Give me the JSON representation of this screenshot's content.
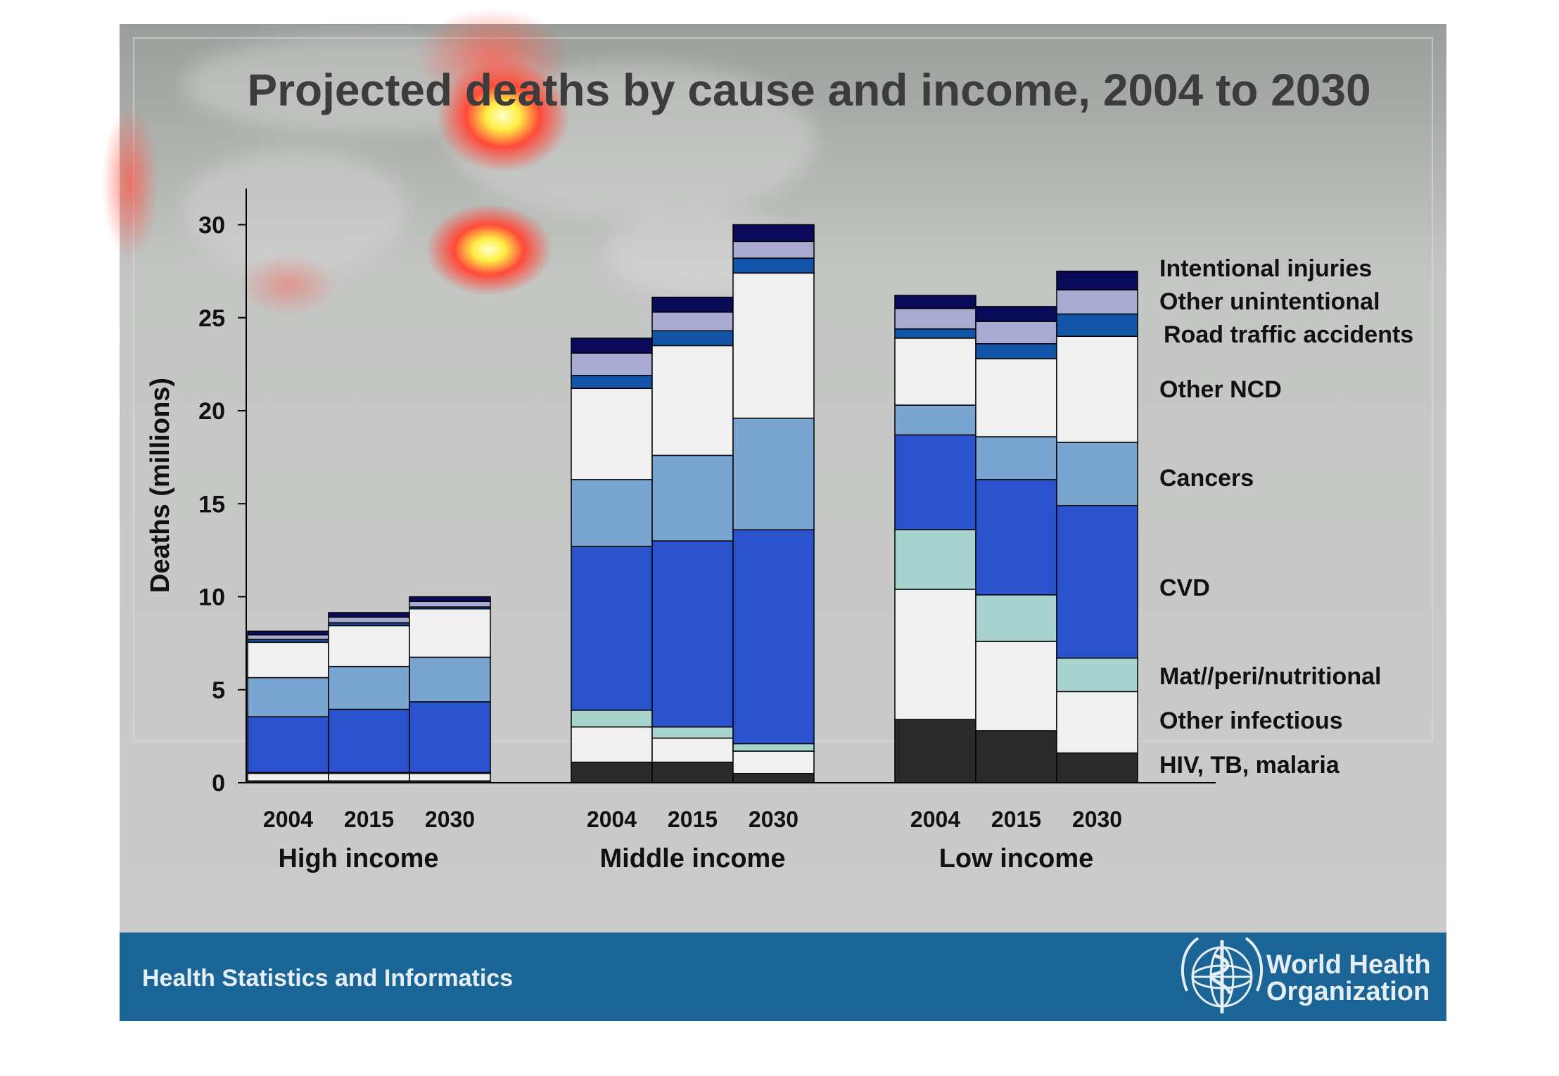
{
  "slide": {
    "title": "Projected deaths by cause and income, 2004 to 2030",
    "footer_text": "Health Statistics and Informatics",
    "logo_text_line1": "World Health",
    "logo_text_line2": "Organization",
    "logo_icon": "who-emblem-icon",
    "colors": {
      "background": "#cccccc",
      "footer": "#1a6496",
      "footer_text": "#e6eef5",
      "heatmap_hot": "#ffff66",
      "heatmap_mid": "#ff3333"
    }
  },
  "chart_data": {
    "type": "bar",
    "stacked": true,
    "ylabel": "Deaths (millions)",
    "ylim": [
      0,
      32
    ],
    "yticks": [
      "0",
      "5",
      "10",
      "15",
      "20",
      "25",
      "30"
    ],
    "groups": [
      {
        "name": "High income",
        "categories": [
          "2004",
          "2015",
          "2030"
        ]
      },
      {
        "name": "Middle income",
        "categories": [
          "2004",
          "2015",
          "2030"
        ]
      },
      {
        "name": "Low income",
        "categories": [
          "2004",
          "2015",
          "2030"
        ]
      }
    ],
    "series": [
      {
        "name": "HIV, TB, malaria",
        "color": "#2a2a2a",
        "values": [
          0.1,
          0.1,
          0.1,
          1.1,
          1.1,
          0.5,
          3.4,
          2.8,
          1.6
        ]
      },
      {
        "name": "Other infectious",
        "color": "#f0f0f0",
        "values": [
          0.4,
          0.4,
          0.4,
          1.9,
          1.3,
          1.2,
          7.0,
          4.8,
          3.3
        ]
      },
      {
        "name": "Mat//peri/nutritional",
        "color": "#a8d4d0",
        "values": [
          0.05,
          0.05,
          0.05,
          0.9,
          0.6,
          0.4,
          3.2,
          2.5,
          1.8
        ]
      },
      {
        "name": "CVD",
        "color": "#2a52cc",
        "values": [
          3.0,
          3.4,
          3.8,
          8.8,
          10.0,
          11.5,
          5.1,
          6.2,
          8.2
        ]
      },
      {
        "name": "Cancers",
        "color": "#7aa5d0",
        "values": [
          2.1,
          2.3,
          2.4,
          3.6,
          4.6,
          6.0,
          1.6,
          2.3,
          3.4
        ]
      },
      {
        "name": "Other NCD",
        "color": "#f0f0f0",
        "values": [
          1.9,
          2.2,
          2.6,
          4.9,
          5.9,
          7.8,
          3.6,
          4.2,
          5.7
        ]
      },
      {
        "name": "Road traffic accidents",
        "color": "#1255a8",
        "values": [
          0.15,
          0.15,
          0.1,
          0.7,
          0.8,
          0.8,
          0.5,
          0.8,
          1.2
        ]
      },
      {
        "name": "Other unintentional",
        "color": "#a8aad2",
        "values": [
          0.25,
          0.3,
          0.3,
          1.2,
          1.0,
          0.9,
          1.1,
          1.2,
          1.3
        ]
      },
      {
        "name": "Intentional injuries",
        "color": "#0a0a5a",
        "values": [
          0.2,
          0.25,
          0.25,
          0.8,
          0.8,
          0.9,
          0.7,
          0.8,
          1.0
        ]
      }
    ],
    "legend_placement": "right (labels beside bars)",
    "grid": false
  }
}
